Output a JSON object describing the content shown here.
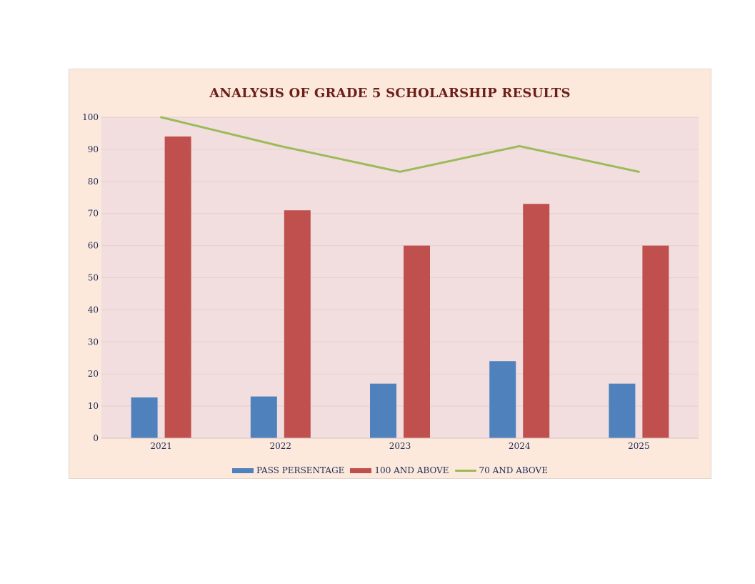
{
  "chart_data": {
    "type": "bar",
    "title": "ANALYSIS OF GRADE 5 SCHOLARSHIP RESULTS",
    "categories": [
      "2021",
      "2022",
      "2023",
      "2024",
      "2025"
    ],
    "series": [
      {
        "name": "PASS PERSENTAGE",
        "kind": "bar",
        "color": "#4f81bd",
        "values": [
          12.7,
          13,
          17,
          24,
          17
        ]
      },
      {
        "name": "100 AND ABOVE",
        "kind": "bar",
        "color": "#c0504d",
        "values": [
          94,
          71,
          60,
          73,
          60
        ]
      },
      {
        "name": "70 AND ABOVE",
        "kind": "line",
        "color": "#9bbb59",
        "values": [
          100,
          91,
          83,
          91,
          83
        ]
      }
    ],
    "ylim": [
      0,
      100
    ],
    "yticks": [
      "0",
      "10",
      "20",
      "30",
      "40",
      "50",
      "60",
      "70",
      "80",
      "90",
      "100"
    ],
    "grid": true,
    "legend_position": "bottom",
    "colors": {
      "card_background": "#fce9dc",
      "plot_background": "#f2dede",
      "title_color": "#6b1f17",
      "axis_text_color": "#1f2d5a"
    }
  }
}
